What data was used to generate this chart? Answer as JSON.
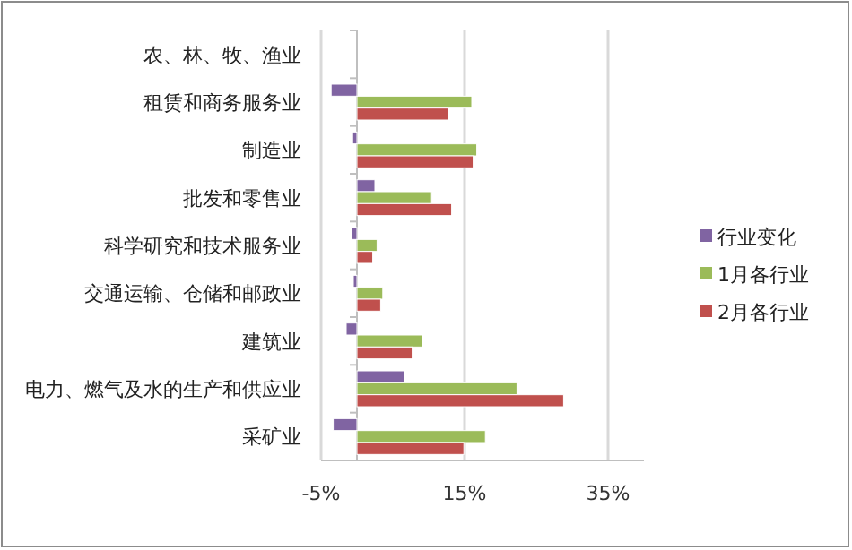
{
  "chart_data": {
    "type": "bar",
    "orientation": "horizontal",
    "categories": [
      "农、林、牧、渔业",
      "租赁和商务服务业",
      "制造业",
      "批发和零售业",
      "科学研究和技术服务业",
      "交通运输、仓储和邮政业",
      "建筑业",
      "电力、燃气及水的生产和供应业",
      "采矿业"
    ],
    "series": [
      {
        "name": "行业变化",
        "color": "#8064a2",
        "values": [
          null,
          -3.6,
          -0.6,
          2.5,
          -0.7,
          -0.5,
          -1.5,
          6.6,
          -3.3
        ]
      },
      {
        "name": "1月各行业",
        "color": "#9bbb59",
        "values": [
          null,
          16.0,
          16.7,
          10.4,
          2.8,
          3.6,
          9.1,
          22.3,
          17.9
        ]
      },
      {
        "name": "2月各行业",
        "color": "#c0504d",
        "values": [
          null,
          12.7,
          16.2,
          13.2,
          2.2,
          3.3,
          7.7,
          28.8,
          14.9
        ]
      }
    ],
    "xlim": [
      -5,
      40
    ],
    "xticks": [
      {
        "value": -5,
        "label": "-5%"
      },
      {
        "value": 15,
        "label": "15%"
      },
      {
        "value": 35,
        "label": "35%"
      }
    ],
    "grid": "x",
    "legend": "right"
  }
}
